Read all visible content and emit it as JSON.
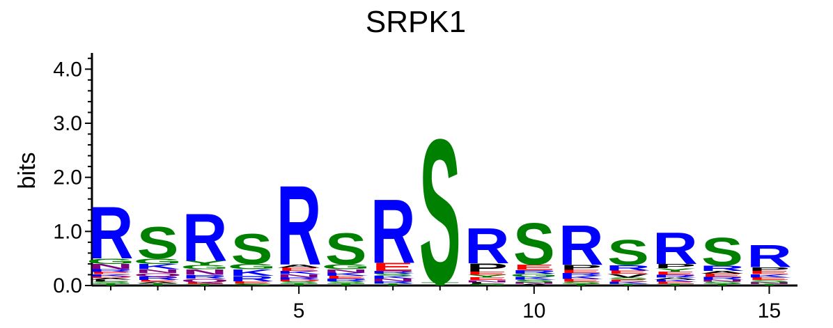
{
  "chart_data": {
    "type": "sequence-logo",
    "title": "SRPK1",
    "ylabel": "bits",
    "xlabel": "",
    "ylim": [
      0,
      4.3
    ],
    "xlim": [
      0.6,
      15.6
    ],
    "y_ticks": [
      "0.0",
      "1.0",
      "2.0",
      "3.0",
      "4.0"
    ],
    "y_tick_values": [
      0,
      1,
      2,
      3,
      4
    ],
    "x_ticks": [
      "5",
      "10",
      "15"
    ],
    "x_tick_values": [
      5,
      10,
      15
    ],
    "colors": {
      "R": "#0000ff",
      "K": "#0000ff",
      "H": "#0000ff",
      "S": "#008000",
      "G": "#008000",
      "T": "#008000",
      "Y": "#008000",
      "C": "#008000",
      "E": "#ff0000",
      "D": "#ff0000",
      "N": "#800080",
      "Q": "#800080",
      "P": "#000000",
      "A": "#000000",
      "V": "#000000",
      "L": "#000000",
      "I": "#000000",
      "M": "#000000",
      "F": "#000000",
      "W": "#000000"
    },
    "positions": [
      {
        "pos": 1,
        "letters": [
          [
            "T",
            0.04
          ],
          [
            "S",
            0.04
          ],
          [
            "L",
            0.03
          ],
          [
            "A",
            0.03
          ],
          [
            "D",
            0.03
          ],
          [
            "K",
            0.04
          ],
          [
            "E",
            0.04
          ],
          [
            "R",
            0.05
          ],
          [
            "N",
            0.1
          ],
          [
            "G",
            0.1
          ],
          [
            "R",
            0.98
          ]
        ]
      },
      {
        "pos": 2,
        "letters": [
          [
            "T",
            0.04
          ],
          [
            "A",
            0.03
          ],
          [
            "E",
            0.03
          ],
          [
            "R",
            0.07
          ],
          [
            "Q",
            0.06
          ],
          [
            "N",
            0.07
          ],
          [
            "K",
            0.1
          ],
          [
            "G",
            0.1
          ],
          [
            "S",
            0.6
          ]
        ]
      },
      {
        "pos": 3,
        "letters": [
          [
            "T",
            0.03
          ],
          [
            "E",
            0.03
          ],
          [
            "Q",
            0.07
          ],
          [
            "R",
            0.07
          ],
          [
            "N",
            0.1
          ],
          [
            "G",
            0.08
          ],
          [
            "Y",
            0.08
          ],
          [
            "R",
            0.9
          ]
        ]
      },
      {
        "pos": 4,
        "letters": [
          [
            "S",
            0.04
          ],
          [
            "E",
            0.04
          ],
          [
            "R",
            0.1
          ],
          [
            "K",
            0.12
          ],
          [
            "G",
            0.1
          ],
          [
            "S",
            0.57
          ]
        ]
      },
      {
        "pos": 5,
        "letters": [
          [
            "T",
            0.04
          ],
          [
            "S",
            0.04
          ],
          [
            "D",
            0.03
          ],
          [
            "R",
            0.04
          ],
          [
            "N",
            0.06
          ],
          [
            "K",
            0.06
          ],
          [
            "E",
            0.06
          ],
          [
            "A",
            0.06
          ],
          [
            "R",
            1.5
          ]
        ]
      },
      {
        "pos": 6,
        "letters": [
          [
            "T",
            0.04
          ],
          [
            "S",
            0.04
          ],
          [
            "R",
            0.05
          ],
          [
            "E",
            0.05
          ],
          [
            "K",
            0.06
          ],
          [
            "N",
            0.06
          ],
          [
            "G",
            0.09
          ],
          [
            "S",
            0.59
          ]
        ]
      },
      {
        "pos": 7,
        "letters": [
          [
            "T",
            0.04
          ],
          [
            "R",
            0.04
          ],
          [
            "N",
            0.05
          ],
          [
            "K",
            0.05
          ],
          [
            "S",
            0.04
          ],
          [
            "R",
            0.05
          ],
          [
            "E",
            0.15
          ],
          [
            "R",
            1.21
          ]
        ]
      },
      {
        "pos": 8,
        "letters": [
          [
            "T",
            0.06
          ],
          [
            "S",
            2.72
          ]
        ]
      },
      {
        "pos": 9,
        "letters": [
          [
            "S",
            0.03
          ],
          [
            "L",
            0.03
          ],
          [
            "N",
            0.04
          ],
          [
            "E",
            0.05
          ],
          [
            "Y",
            0.05
          ],
          [
            "E",
            0.06
          ],
          [
            "P",
            0.15
          ],
          [
            "R",
            0.67
          ]
        ]
      },
      {
        "pos": 10,
        "letters": [
          [
            "A",
            0.03
          ],
          [
            "N",
            0.03
          ],
          [
            "S",
            0.05
          ],
          [
            "K",
            0.05
          ],
          [
            "G",
            0.06
          ],
          [
            "R",
            0.07
          ],
          [
            "E",
            0.1
          ],
          [
            "S",
            0.79
          ]
        ]
      },
      {
        "pos": 11,
        "letters": [
          [
            "T",
            0.03
          ],
          [
            "S",
            0.04
          ],
          [
            "E",
            0.05
          ],
          [
            "K",
            0.06
          ],
          [
            "R",
            0.05
          ],
          [
            "E",
            0.06
          ],
          [
            "P",
            0.09
          ],
          [
            "R",
            0.75
          ]
        ]
      },
      {
        "pos": 12,
        "letters": [
          [
            "T",
            0.03
          ],
          [
            "K",
            0.04
          ],
          [
            "E",
            0.04
          ],
          [
            "S",
            0.04
          ],
          [
            "V",
            0.07
          ],
          [
            "E",
            0.06
          ],
          [
            "R",
            0.1
          ],
          [
            "S",
            0.48
          ]
        ]
      },
      {
        "pos": 13,
        "letters": [
          [
            "T",
            0.03
          ],
          [
            "E",
            0.04
          ],
          [
            "K",
            0.04
          ],
          [
            "A",
            0.04
          ],
          [
            "R",
            0.05
          ],
          [
            "E",
            0.06
          ],
          [
            "Y",
            0.06
          ],
          [
            "P",
            0.08
          ],
          [
            "R",
            0.6
          ]
        ]
      },
      {
        "pos": 14,
        "letters": [
          [
            "T",
            0.03
          ],
          [
            "S",
            0.04
          ],
          [
            "N",
            0.04
          ],
          [
            "R",
            0.05
          ],
          [
            "E",
            0.06
          ],
          [
            "A",
            0.05
          ],
          [
            "R",
            0.1
          ],
          [
            "S",
            0.53
          ]
        ]
      },
      {
        "pos": 15,
        "letters": [
          [
            "T",
            0.03
          ],
          [
            "N",
            0.03
          ],
          [
            "S",
            0.04
          ],
          [
            "E",
            0.05
          ],
          [
            "K",
            0.06
          ],
          [
            "E",
            0.06
          ],
          [
            "P",
            0.07
          ],
          [
            "R",
            0.42
          ]
        ]
      }
    ]
  }
}
